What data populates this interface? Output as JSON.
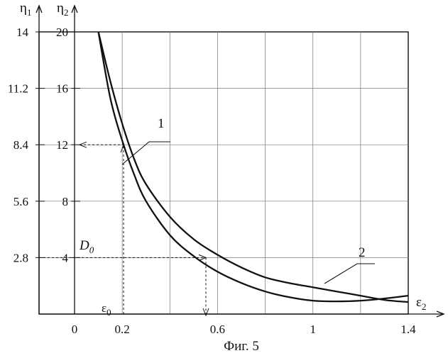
{
  "chart_data": {
    "type": "line",
    "caption": "Фиг. 5",
    "x_axis": {
      "label": "ε",
      "label_sub": "2",
      "range": [
        0,
        1.4
      ],
      "ticks": [
        {
          "value": 0,
          "label": "0"
        },
        {
          "value": 0.2,
          "label": "0.2"
        },
        {
          "value": 0.6,
          "label": "0.6"
        },
        {
          "value": 1.0,
          "label": "1"
        },
        {
          "value": 1.4,
          "label": "1.4"
        }
      ],
      "grid_step": 0.2
    },
    "y_axes": [
      {
        "label": "η",
        "label_sub": "1",
        "range": [
          0,
          14
        ],
        "ticks": [
          {
            "value": 2.8,
            "label": "2.8"
          },
          {
            "value": 5.6,
            "label": "5.6"
          },
          {
            "value": 8.4,
            "label": "8.4"
          },
          {
            "value": 11.2,
            "label": "11.2"
          },
          {
            "value": 14,
            "label": "14"
          }
        ]
      },
      {
        "label": "η",
        "label_sub": "2",
        "range": [
          0,
          20
        ],
        "ticks": [
          {
            "value": 4,
            "label": "4"
          },
          {
            "value": 8,
            "label": "8"
          },
          {
            "value": 12,
            "label": "12"
          },
          {
            "value": 16,
            "label": "16"
          },
          {
            "value": 20,
            "label": "20"
          }
        ]
      }
    ],
    "grid": true,
    "series": [
      {
        "name": "1",
        "axis": "η2",
        "points": [
          [
            0.1,
            20
          ],
          [
            0.15,
            16.5
          ],
          [
            0.2,
            13.5
          ],
          [
            0.25,
            11
          ],
          [
            0.3,
            9.2
          ],
          [
            0.4,
            6.9
          ],
          [
            0.5,
            5.3
          ],
          [
            0.6,
            4.2
          ],
          [
            0.7,
            3.3
          ],
          [
            0.8,
            2.6
          ],
          [
            0.9,
            2.2
          ],
          [
            1.0,
            1.9
          ],
          [
            1.1,
            1.6
          ],
          [
            1.2,
            1.3
          ],
          [
            1.3,
            1.0
          ],
          [
            1.4,
            0.85
          ]
        ]
      },
      {
        "name": "2",
        "axis": "η2",
        "points": [
          [
            0.1,
            20
          ],
          [
            0.15,
            15.3
          ],
          [
            0.2,
            12.3
          ],
          [
            0.25,
            9.9
          ],
          [
            0.3,
            8.0
          ],
          [
            0.4,
            5.6
          ],
          [
            0.5,
            4.1
          ],
          [
            0.6,
            3.0
          ],
          [
            0.7,
            2.2
          ],
          [
            0.8,
            1.6
          ],
          [
            0.9,
            1.2
          ],
          [
            1.0,
            0.95
          ],
          [
            1.1,
            0.9
          ],
          [
            1.2,
            0.95
          ],
          [
            1.3,
            1.1
          ],
          [
            1.4,
            1.3
          ]
        ]
      }
    ],
    "annotations": {
      "point_label": "D",
      "point_label_sub": "0",
      "epsilon_label": "ε",
      "epsilon_label_sub": "0"
    }
  }
}
